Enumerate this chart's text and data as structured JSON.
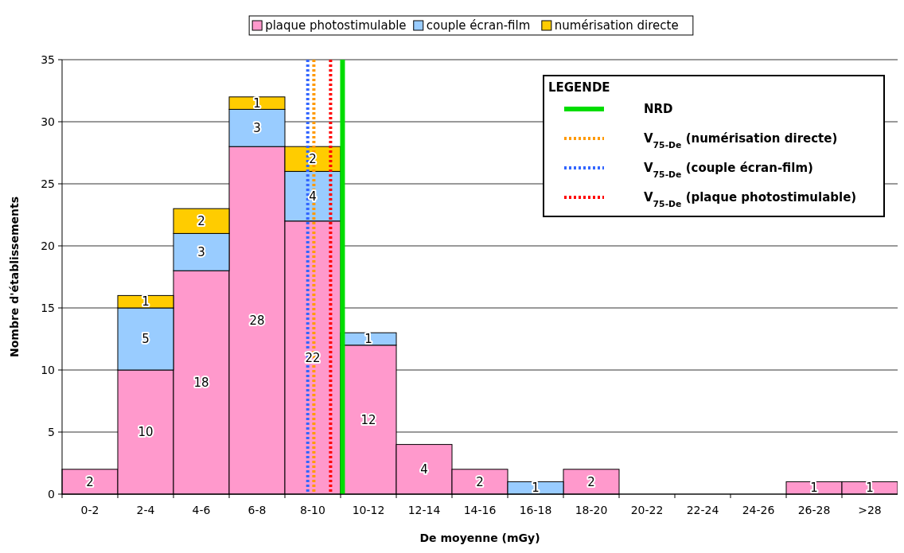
{
  "chart_data": {
    "type": "bar",
    "stacked": true,
    "xlabel": "De moyenne (mGy)",
    "ylabel": "Nombre d'établissements",
    "categories": [
      "0-2",
      "2-4",
      "4-6",
      "6-8",
      "8-10",
      "10-12",
      "12-14",
      "14-16",
      "16-18",
      "18-20",
      "20-22",
      "22-24",
      "24-26",
      "26-28",
      ">28"
    ],
    "series": [
      {
        "name": "plaque photostimulable",
        "color": "#ff99cc",
        "values": [
          2,
          10,
          18,
          28,
          22,
          12,
          4,
          2,
          null,
          2,
          null,
          null,
          null,
          1,
          1
        ]
      },
      {
        "name": "couple écran-film",
        "color": "#99ccff",
        "values": [
          null,
          5,
          3,
          3,
          4,
          1,
          null,
          null,
          1,
          null,
          null,
          null,
          null,
          null,
          null
        ]
      },
      {
        "name": "numérisation directe",
        "color": "#ffcc00",
        "values": [
          null,
          1,
          2,
          1,
          2,
          null,
          null,
          null,
          null,
          null,
          null,
          null,
          null,
          null,
          null
        ]
      }
    ],
    "ylim": [
      0,
      35
    ],
    "yticks": [
      0,
      5,
      10,
      15,
      20,
      25,
      30,
      35
    ],
    "grid": "y",
    "legend": "top",
    "data_labels": true,
    "annotations": [
      "LEGENDE",
      "NRD",
      "V$_{75-De}$ (numérisation directe)",
      "V$_{75-De}$ (couple écran-film)",
      "V$_{75-De}$ (plaque photostimulable)"
    ]
  }
}
